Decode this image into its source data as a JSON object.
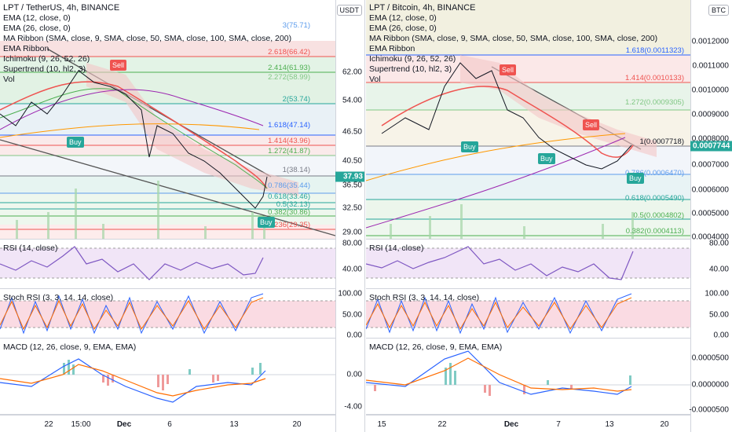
{
  "left": {
    "title": "LPT / TetherUS, 4h, BINANCE",
    "indicators": [
      "EMA (12, close, 0)",
      "EMA (26, close, 0)",
      "MA Ribbon (SMA, close, 9, SMA, close, 50, SMA, close, 100, SMA, close, 200)",
      "EMA Ribbon",
      "Ichimoku (9, 26, 52, 26)",
      "Supertrend (10, hl2, 3)",
      "Vol"
    ],
    "unit": "USDT",
    "price_ticks": [
      "62.00",
      "54.00",
      "46.50",
      "40.50",
      "36.50",
      "32.50",
      "29.00"
    ],
    "last_price": "37.93",
    "fib_labels": [
      "3(75.71)",
      "2.618(66.42)",
      "2.414(61.93)",
      "2.272(58.99)",
      "2(53.74)",
      "1.618(47.14)",
      "1.414(43.96)",
      "1.272(41.87)",
      "1(38.14)",
      "0.786(35.44)",
      "0.618(33.46)",
      "0.5(32.13)",
      "0.382(30.86)",
      "0.236(29.35)"
    ],
    "signals": {
      "buy": "Buy",
      "sell": "Sell"
    },
    "rsi": {
      "label": "RSI (14, close)",
      "ticks": [
        "80.00",
        "40.00"
      ]
    },
    "stoch": {
      "label": "Stoch RSI (3, 3, 14, 14, close)",
      "ticks": [
        "100.00",
        "50.00",
        "0.00"
      ]
    },
    "macd": {
      "label": "MACD (12, 26, close, 9, EMA, EMA)",
      "ticks": [
        "0.00",
        "-4.00"
      ]
    },
    "x_ticks": [
      "22",
      "15:00",
      "Dec",
      "6",
      "13",
      "20"
    ]
  },
  "right": {
    "title": "LPT / Bitcoin, 4h, BINANCE",
    "indicators": [
      "EMA (12, close, 0)",
      "EMA (26, close, 0)",
      "MA Ribbon (SMA, close, 9, SMA, close, 50, SMA, close, 100, SMA, close, 200)",
      "EMA Ribbon",
      "Ichimoku (9, 26, 52, 26)",
      "Supertrend (10, hl2, 3)",
      "Vol"
    ],
    "unit": "BTC",
    "price_ticks": [
      "0.0012000",
      "0.0011000",
      "0.0010000",
      "0.0009000",
      "0.0008000",
      "0.0007000",
      "0.0006000",
      "0.0005000",
      "0.0004000"
    ],
    "last_price": "0.0007744",
    "fib_labels": [
      "1.618(0.0011323)",
      "1.414(0.0010133)",
      "1.272(0.0009305)",
      "1(0.0007718)",
      "0.786(0.0006470)",
      "0.618(0.0005490)",
      "0.5(0.0004802)",
      "0.382(0.0004113)"
    ],
    "signals": {
      "buy": "Buy",
      "sell": "Sell"
    },
    "rsi": {
      "label": "RSI (14, close)",
      "ticks": [
        "80.00",
        "40.00"
      ]
    },
    "stoch": {
      "label": "Stoch RSI (3, 3, 14, 14, close)",
      "ticks": [
        "100.00",
        "50.00",
        "0.00"
      ]
    },
    "macd": {
      "label": "MACD (12, 26, close, 9, EMA, EMA)",
      "ticks": [
        "0.0000500",
        "0.0000000",
        "-0.0000500"
      ]
    },
    "x_ticks": [
      "15",
      "22",
      "Dec",
      "7",
      "13",
      "20"
    ]
  }
}
